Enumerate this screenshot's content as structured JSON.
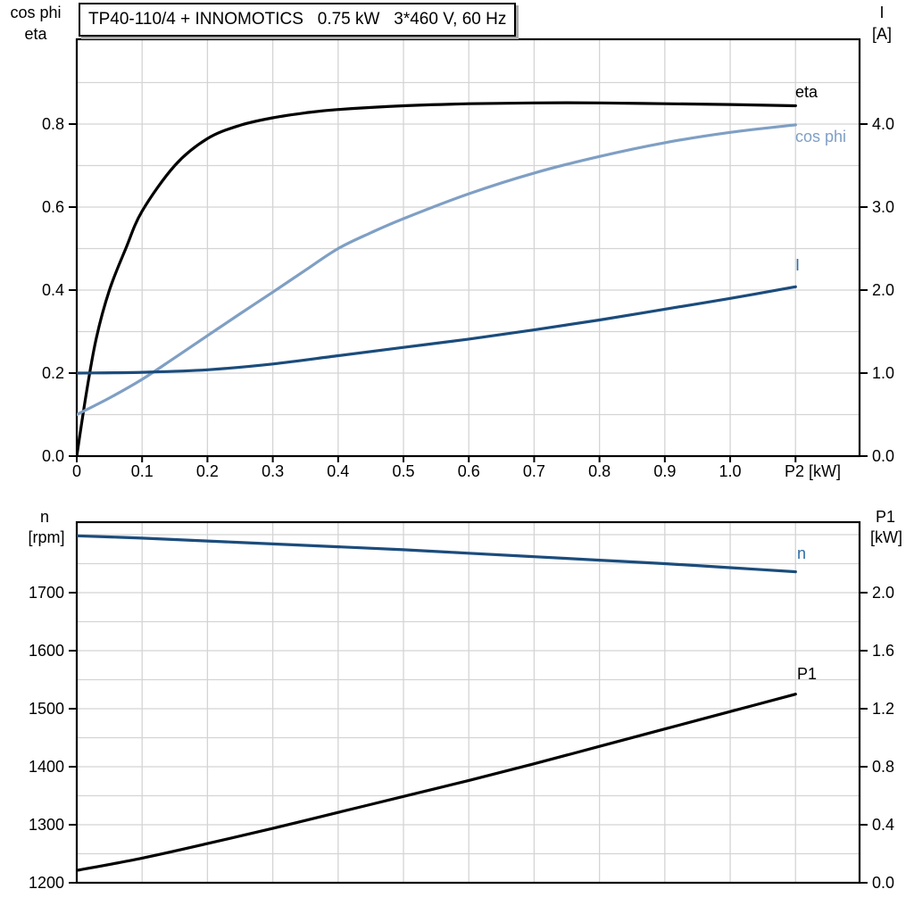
{
  "title": "TP40-110/4 + INNOMOTICS   0.75 kW   3*460 V, 60 Hz",
  "colors": {
    "background": "#ffffff",
    "grid": "#d4d4d4",
    "axis": "#000000",
    "eta_black": "#000000",
    "cosphi_blue": "#7f9fc4",
    "navy": "#1b4c7c",
    "label_blue": "#2e6da5"
  },
  "chart_data": [
    {
      "id": "top",
      "type": "line",
      "title": "TP40-110/4 + INNOMOTICS   0.75 kW   3*460 V, 60 Hz",
      "xlabel": "P2 [kW]",
      "xlim": [
        0,
        1.198
      ],
      "x_grid_step": 0.1,
      "x_ticks": [
        0,
        0.1,
        0.2,
        0.3,
        0.4,
        0.5,
        0.6,
        0.7,
        0.8,
        0.9,
        1.0
      ],
      "x_tick_labels": [
        "0",
        "0.1",
        "0.2",
        "0.3",
        "0.4",
        "0.5",
        "0.6",
        "0.7",
        "0.8",
        "0.9",
        "1.0"
      ],
      "grid": true,
      "axes": {
        "left": {
          "title_lines": [
            "cos phi",
            "eta"
          ],
          "lim": [
            0,
            1.0043
          ],
          "grid_step": 0.1,
          "ticks": [
            0,
            0.2,
            0.4,
            0.6,
            0.8
          ],
          "tick_labels": [
            "0.0",
            "0.2",
            "0.4",
            "0.6",
            "0.8"
          ]
        },
        "right": {
          "title_lines": [
            "I",
            "[A]"
          ],
          "lim": [
            0,
            5.0215
          ],
          "ticks": [
            0,
            1,
            2,
            3,
            4
          ],
          "tick_labels": [
            "0.0",
            "1.0",
            "2.0",
            "3.0",
            "4.0"
          ]
        }
      },
      "series": [
        {
          "name": "eta",
          "axis": "left",
          "color": "#000000",
          "x": [
            0,
            0.015,
            0.03,
            0.05,
            0.075,
            0.1,
            0.15,
            0.2,
            0.25,
            0.3,
            0.35,
            0.4,
            0.5,
            0.6,
            0.7,
            0.8,
            0.9,
            1.0,
            1.1
          ],
          "values": [
            0,
            0.155,
            0.285,
            0.4,
            0.5,
            0.59,
            0.7,
            0.765,
            0.797,
            0.815,
            0.827,
            0.835,
            0.844,
            0.849,
            0.851,
            0.851,
            0.849,
            0.847,
            0.844
          ],
          "label": {
            "text": "eta",
            "color": "#000000"
          }
        },
        {
          "name": "cos phi",
          "axis": "left",
          "color": "#7f9fc4",
          "x": [
            0,
            0.05,
            0.1,
            0.15,
            0.2,
            0.25,
            0.3,
            0.35,
            0.4,
            0.45,
            0.5,
            0.6,
            0.7,
            0.8,
            0.9,
            1.0,
            1.1
          ],
          "values": [
            0.1,
            0.14,
            0.185,
            0.237,
            0.29,
            0.343,
            0.395,
            0.448,
            0.5,
            0.538,
            0.572,
            0.632,
            0.682,
            0.722,
            0.755,
            0.78,
            0.798
          ],
          "label": {
            "text": "cos phi",
            "color": "#7f9fc4"
          }
        },
        {
          "name": "I",
          "axis": "right",
          "color": "#1b4c7c",
          "x": [
            0,
            0.1,
            0.2,
            0.3,
            0.4,
            0.5,
            0.6,
            0.7,
            0.8,
            0.9,
            1.0,
            1.1
          ],
          "values": [
            1.0,
            1.01,
            1.04,
            1.11,
            1.21,
            1.31,
            1.41,
            1.52,
            1.64,
            1.77,
            1.9,
            2.04
          ],
          "label": {
            "text": "I",
            "color": "#2e6da5"
          }
        }
      ]
    },
    {
      "id": "bottom",
      "type": "line",
      "xlabel": "",
      "xlim": [
        0,
        1.198
      ],
      "x_grid_step": 0.1,
      "x_ticks": [],
      "x_tick_labels": [],
      "grid": true,
      "axes": {
        "left": {
          "title_lines": [
            "n",
            "[rpm]"
          ],
          "lim": [
            1200,
            1821.5
          ],
          "grid_step": 50,
          "ticks": [
            1200,
            1300,
            1400,
            1500,
            1600,
            1700
          ],
          "tick_labels": [
            "1200",
            "1300",
            "1400",
            "1500",
            "1600",
            "1700"
          ]
        },
        "right": {
          "title_lines": [
            "P1",
            "[kW]"
          ],
          "lim": [
            0,
            2.486
          ],
          "ticks": [
            0,
            0.4,
            0.8,
            1.2,
            1.6,
            2.0
          ],
          "tick_labels": [
            "0.0",
            "0.4",
            "0.8",
            "1.2",
            "1.6",
            "2.0"
          ]
        }
      },
      "series": [
        {
          "name": "n",
          "axis": "left",
          "color": "#1b4c7c",
          "x": [
            0,
            0.1,
            0.2,
            0.3,
            0.4,
            0.5,
            0.6,
            0.7,
            0.8,
            0.9,
            1.0,
            1.1
          ],
          "values": [
            1798,
            1794,
            1789,
            1784,
            1779,
            1774,
            1768,
            1762,
            1756,
            1750,
            1743,
            1736
          ],
          "label": {
            "text": "n",
            "color": "#2e6da5"
          }
        },
        {
          "name": "P1",
          "axis": "right",
          "color": "#000000",
          "x": [
            0,
            0.1,
            0.2,
            0.3,
            0.4,
            0.5,
            0.6,
            0.7,
            0.8,
            0.9,
            1.0,
            1.1
          ],
          "values": [
            0.085,
            0.17,
            0.27,
            0.375,
            0.485,
            0.595,
            0.705,
            0.82,
            0.94,
            1.06,
            1.18,
            1.3
          ],
          "label": {
            "text": "P1",
            "color": "#000000"
          }
        }
      ]
    }
  ]
}
